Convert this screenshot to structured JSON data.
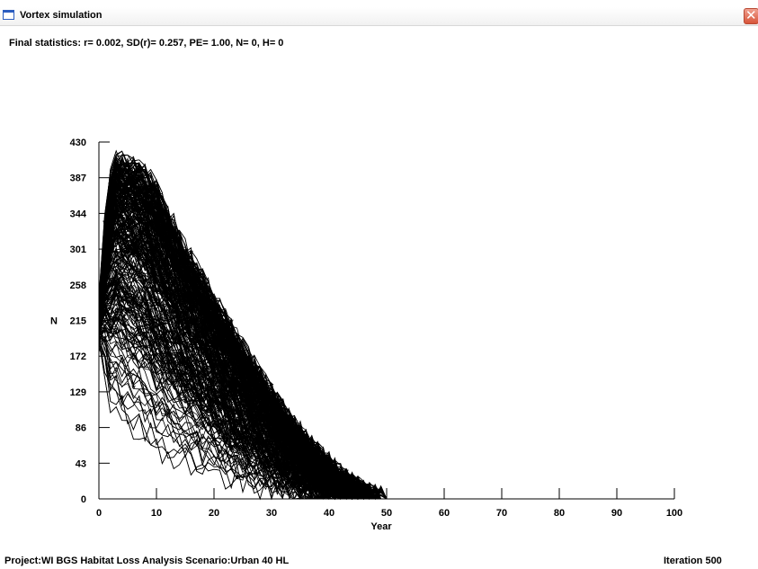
{
  "window": {
    "title": "Vortex simulation",
    "close_glyph": "✕",
    "title_icon": "window-icon"
  },
  "stats_text": "Final statistics: r= 0.002, SD(r)= 0.257, PE= 1.00, N= 0, H= 0",
  "status": {
    "project": "Project:WI BGS Habitat Loss Analysis  Scenario:Urban 40 HL",
    "iteration": "Iteration   500"
  },
  "chart_data": {
    "type": "line",
    "title": "",
    "xlabel": "Year",
    "ylabel": "N",
    "xlim": [
      0,
      100
    ],
    "ylim": [
      0,
      430
    ],
    "xticks": [
      0,
      10,
      20,
      30,
      40,
      50,
      60,
      70,
      80,
      90,
      100
    ],
    "yticks": [
      0,
      43,
      86,
      129,
      172,
      215,
      258,
      301,
      344,
      387,
      430
    ],
    "n_iterations": 500,
    "line_color": "#000000",
    "extinction_marker_color": "#e03030",
    "envelope_upper": [
      [
        0,
        230
      ],
      [
        1,
        330
      ],
      [
        2,
        385
      ],
      [
        3,
        410
      ],
      [
        5,
        408
      ],
      [
        10,
        385
      ],
      [
        15,
        355
      ],
      [
        20,
        325
      ],
      [
        25,
        290
      ],
      [
        30,
        250
      ],
      [
        35,
        200
      ],
      [
        40,
        150
      ],
      [
        45,
        80
      ],
      [
        50,
        0
      ]
    ],
    "envelope_lower": [
      [
        0,
        180
      ],
      [
        2,
        80
      ],
      [
        5,
        45
      ],
      [
        10,
        25
      ],
      [
        20,
        15
      ],
      [
        30,
        5
      ],
      [
        40,
        0
      ],
      [
        50,
        0
      ]
    ],
    "grid": false,
    "legend": "none"
  }
}
